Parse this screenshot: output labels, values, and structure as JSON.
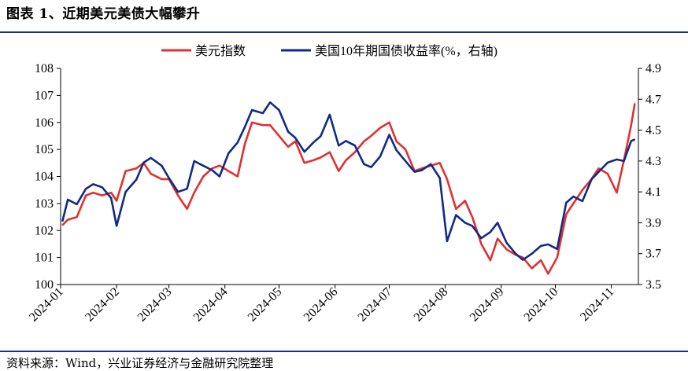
{
  "title": "图表 1、近期美元美债大幅攀升",
  "source": "资料来源：Wind，兴业证券经济与金融研究院整理",
  "colors": {
    "usd": "#e03030",
    "yield": "#112a84",
    "rule": "#1b2f80",
    "axis": "#000000"
  },
  "chart_data": {
    "type": "line",
    "legend": [
      "美元指数",
      "美国10年期国债收益率(%，右轴)"
    ],
    "legend_position": "top-right",
    "grid": false,
    "x_ticks": [
      "2024-01",
      "2024-02",
      "2024-03",
      "2024-04",
      "2024-05",
      "2024-06",
      "2024-07",
      "2024-08",
      "2024-09",
      "2024-10",
      "2024-11"
    ],
    "y_left": {
      "range": [
        100,
        108
      ],
      "ticks": [
        "100",
        "101",
        "102",
        "103",
        "104",
        "105",
        "106",
        "107",
        "108"
      ]
    },
    "y_right": {
      "range": [
        3.5,
        4.9
      ],
      "ticks": [
        "3.5",
        "3.7",
        "3.9",
        "4.1",
        "4.3",
        "4.5",
        "4.7",
        "4.9"
      ]
    },
    "series": [
      {
        "name": "美元指数",
        "axis": "left",
        "x": [
          "2024-01-02",
          "2024-01-05",
          "2024-01-10",
          "2024-01-15",
          "2024-01-19",
          "2024-01-24",
          "2024-01-29",
          "2024-02-01",
          "2024-02-06",
          "2024-02-12",
          "2024-02-16",
          "2024-02-20",
          "2024-02-26",
          "2024-03-01",
          "2024-03-06",
          "2024-03-11",
          "2024-03-15",
          "2024-03-20",
          "2024-03-25",
          "2024-03-29",
          "2024-04-03",
          "2024-04-08",
          "2024-04-12",
          "2024-04-16",
          "2024-04-22",
          "2024-04-26",
          "2024-05-01",
          "2024-05-06",
          "2024-05-10",
          "2024-05-15",
          "2024-05-20",
          "2024-05-24",
          "2024-05-29",
          "2024-06-03",
          "2024-06-07",
          "2024-06-12",
          "2024-06-17",
          "2024-06-21",
          "2024-06-26",
          "2024-07-01",
          "2024-07-05",
          "2024-07-10",
          "2024-07-15",
          "2024-07-19",
          "2024-07-24",
          "2024-07-29",
          "2024-08-02",
          "2024-08-07",
          "2024-08-12",
          "2024-08-16",
          "2024-08-21",
          "2024-08-26",
          "2024-08-30",
          "2024-09-04",
          "2024-09-09",
          "2024-09-13",
          "2024-09-18",
          "2024-09-23",
          "2024-09-27",
          "2024-10-02",
          "2024-10-07",
          "2024-10-11",
          "2024-10-16",
          "2024-10-21",
          "2024-10-25",
          "2024-10-30",
          "2024-11-04",
          "2024-11-08",
          "2024-11-12",
          "2024-11-14"
        ],
        "values": [
          102.2,
          102.4,
          102.5,
          103.3,
          103.4,
          103.3,
          103.4,
          103.1,
          104.2,
          104.3,
          104.5,
          104.1,
          103.9,
          103.9,
          103.3,
          102.8,
          103.4,
          104.0,
          104.3,
          104.4,
          104.2,
          104.0,
          105.2,
          106.0,
          105.9,
          105.9,
          105.5,
          105.1,
          105.3,
          104.5,
          104.6,
          104.7,
          104.9,
          104.2,
          104.6,
          104.9,
          105.3,
          105.5,
          105.8,
          106.0,
          105.3,
          105.0,
          104.2,
          104.3,
          104.4,
          104.5,
          103.9,
          102.8,
          103.1,
          102.5,
          101.5,
          100.9,
          101.7,
          101.3,
          101.1,
          101.0,
          100.6,
          100.9,
          100.4,
          101.0,
          102.6,
          103.0,
          103.5,
          103.9,
          104.3,
          104.1,
          103.4,
          104.6,
          105.9,
          106.7
        ]
      },
      {
        "name": "美国10年期国债收益率(%，右轴)",
        "axis": "right",
        "x": [
          "2024-01-02",
          "2024-01-05",
          "2024-01-10",
          "2024-01-15",
          "2024-01-19",
          "2024-01-24",
          "2024-01-29",
          "2024-02-01",
          "2024-02-06",
          "2024-02-12",
          "2024-02-16",
          "2024-02-20",
          "2024-02-26",
          "2024-03-01",
          "2024-03-06",
          "2024-03-11",
          "2024-03-15",
          "2024-03-20",
          "2024-03-25",
          "2024-03-29",
          "2024-04-03",
          "2024-04-08",
          "2024-04-12",
          "2024-04-16",
          "2024-04-22",
          "2024-04-26",
          "2024-05-01",
          "2024-05-06",
          "2024-05-10",
          "2024-05-15",
          "2024-05-20",
          "2024-05-24",
          "2024-05-29",
          "2024-06-03",
          "2024-06-07",
          "2024-06-12",
          "2024-06-17",
          "2024-06-21",
          "2024-06-26",
          "2024-07-01",
          "2024-07-05",
          "2024-07-10",
          "2024-07-15",
          "2024-07-19",
          "2024-07-24",
          "2024-07-29",
          "2024-08-02",
          "2024-08-07",
          "2024-08-12",
          "2024-08-16",
          "2024-08-21",
          "2024-08-26",
          "2024-08-30",
          "2024-09-04",
          "2024-09-09",
          "2024-09-13",
          "2024-09-18",
          "2024-09-23",
          "2024-09-27",
          "2024-10-02",
          "2024-10-07",
          "2024-10-11",
          "2024-10-16",
          "2024-10-21",
          "2024-10-25",
          "2024-10-30",
          "2024-11-04",
          "2024-11-08",
          "2024-11-12",
          "2024-11-14"
        ],
        "values": [
          3.91,
          4.05,
          4.02,
          4.12,
          4.15,
          4.13,
          4.06,
          3.88,
          4.1,
          4.18,
          4.29,
          4.32,
          4.27,
          4.19,
          4.1,
          4.12,
          4.3,
          4.27,
          4.24,
          4.2,
          4.35,
          4.42,
          4.52,
          4.63,
          4.61,
          4.68,
          4.63,
          4.49,
          4.45,
          4.36,
          4.42,
          4.46,
          4.6,
          4.4,
          4.43,
          4.4,
          4.28,
          4.26,
          4.33,
          4.47,
          4.37,
          4.3,
          4.23,
          4.24,
          4.28,
          4.19,
          3.78,
          3.95,
          3.9,
          3.88,
          3.8,
          3.84,
          3.9,
          3.77,
          3.7,
          3.66,
          3.7,
          3.75,
          3.76,
          3.73,
          4.03,
          4.07,
          4.04,
          4.18,
          4.23,
          4.29,
          4.31,
          4.3,
          4.43,
          4.44
        ]
      }
    ]
  }
}
